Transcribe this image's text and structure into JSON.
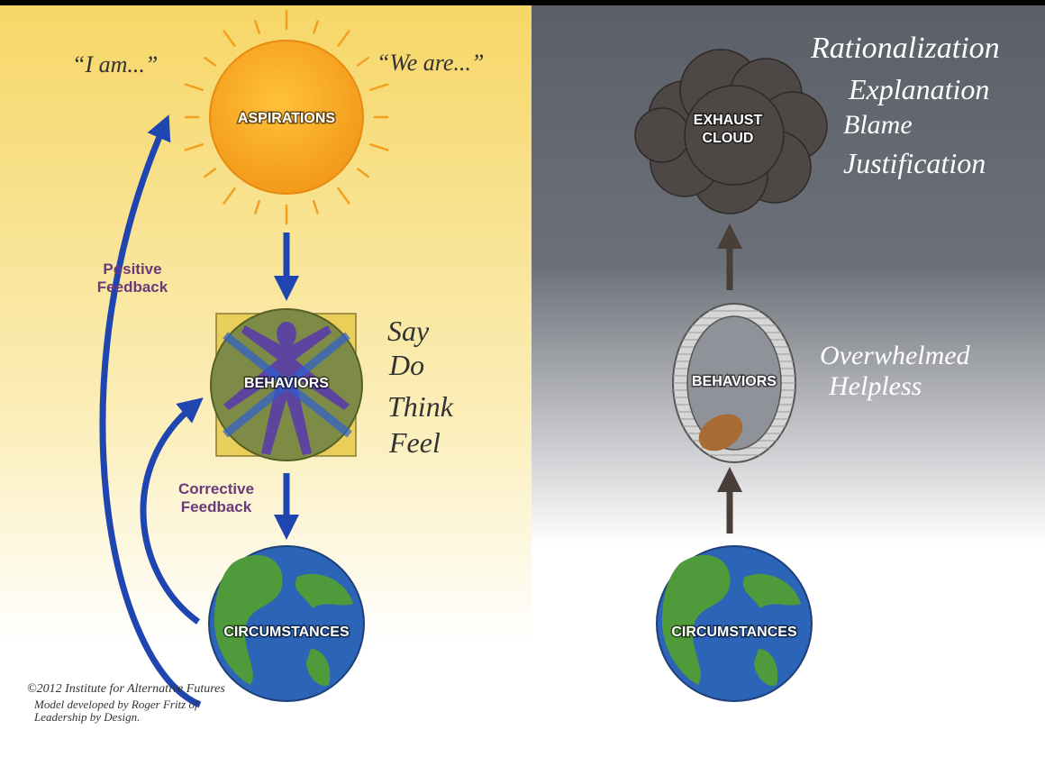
{
  "left": {
    "quotes": [
      "“I am...”",
      "“We are...”"
    ],
    "aspirations": "ASPIRATIONS",
    "behaviors": "BEHAVIORS",
    "behavior_modes": [
      "Say",
      "Do",
      "Think",
      "Feel"
    ],
    "circumstances": "CIRCUMSTANCES",
    "positive_feedback": [
      "Positive",
      "Feedback"
    ],
    "corrective_feedback": [
      "Corrective",
      "Feedback"
    ]
  },
  "right": {
    "exhaust_cloud": [
      "EXHAUST",
      "CLOUD"
    ],
    "excuses": [
      "Rationalization",
      "Explanation",
      "Blame",
      "Justification"
    ],
    "behaviors": "BEHAVIORS",
    "feelings": [
      "Overwhelmed",
      "Helpless"
    ],
    "circumstances": "CIRCUMSTANCES"
  },
  "credits": [
    "©2012 Institute for Alternative Futures",
    "Model developed by Roger Fritz of",
    "Leadership by Design."
  ]
}
